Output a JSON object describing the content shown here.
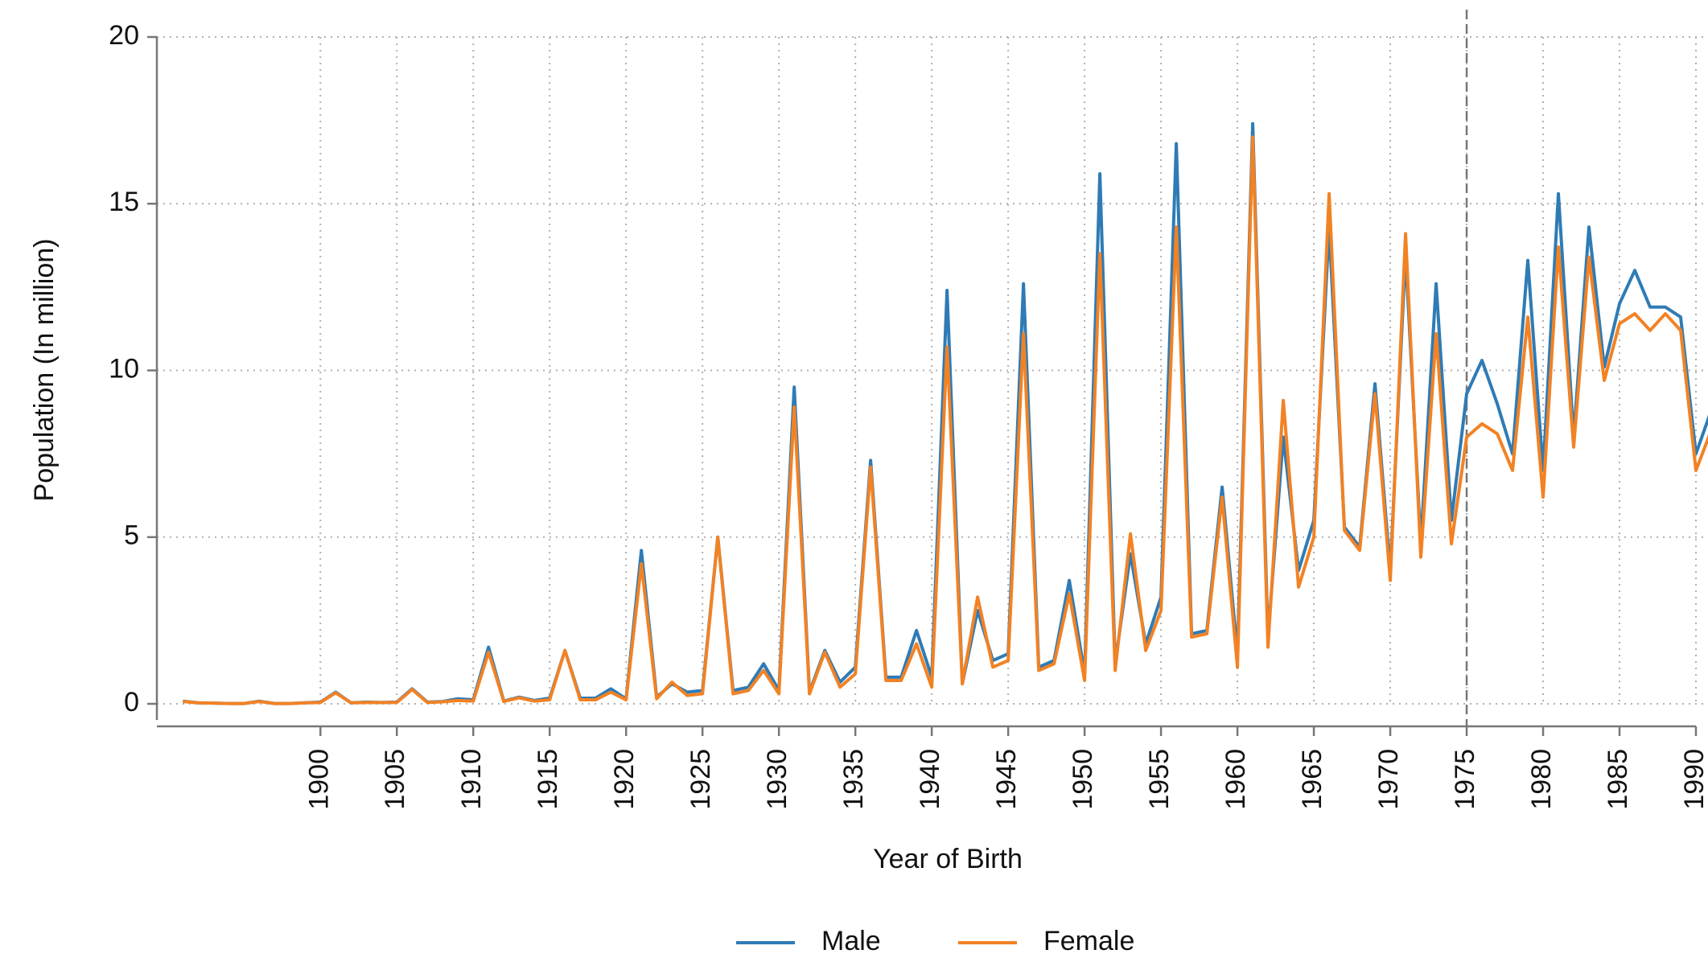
{
  "chart_data": {
    "type": "line",
    "x_label": "Year of Birth",
    "y_label": "Population (In million)",
    "x": [
      1891,
      1892,
      1893,
      1894,
      1895,
      1896,
      1897,
      1898,
      1899,
      1900,
      1901,
      1902,
      1903,
      1904,
      1905,
      1906,
      1907,
      1908,
      1909,
      1910,
      1911,
      1912,
      1913,
      1914,
      1915,
      1916,
      1917,
      1918,
      1919,
      1920,
      1921,
      1922,
      1923,
      1924,
      1925,
      1926,
      1927,
      1928,
      1929,
      1930,
      1931,
      1932,
      1933,
      1934,
      1935,
      1936,
      1937,
      1938,
      1939,
      1940,
      1941,
      1942,
      1943,
      1944,
      1945,
      1946,
      1947,
      1948,
      1949,
      1950,
      1951,
      1952,
      1953,
      1954,
      1955,
      1956,
      1957,
      1958,
      1959,
      1960,
      1961,
      1962,
      1963,
      1964,
      1965,
      1966,
      1967,
      1968,
      1969,
      1970,
      1971,
      1972,
      1973,
      1974,
      1975,
      1976,
      1977,
      1978,
      1979,
      1980,
      1981,
      1982,
      1983,
      1984,
      1985,
      1986,
      1987,
      1988,
      1989,
      1990,
      1991
    ],
    "series": [
      {
        "name": "Male",
        "color": "#2f7bb5",
        "values": [
          0.08,
          0.03,
          0.02,
          0.01,
          0.01,
          0.08,
          0.01,
          0.01,
          0.03,
          0.05,
          0.35,
          0.03,
          0.05,
          0.04,
          0.05,
          0.45,
          0.05,
          0.07,
          0.15,
          0.12,
          1.7,
          0.08,
          0.2,
          0.1,
          0.17,
          1.6,
          0.17,
          0.17,
          0.45,
          0.15,
          4.6,
          0.2,
          0.6,
          0.35,
          0.4,
          5.0,
          0.4,
          0.5,
          1.2,
          0.4,
          9.5,
          0.35,
          1.6,
          0.65,
          1.1,
          7.3,
          0.8,
          0.8,
          2.2,
          0.8,
          12.4,
          0.6,
          2.8,
          1.3,
          1.5,
          12.6,
          1.1,
          1.3,
          3.7,
          0.9,
          15.9,
          1.2,
          4.5,
          1.8,
          3.2,
          16.8,
          2.1,
          2.2,
          6.5,
          1.5,
          17.4,
          2.0,
          8.0,
          4.0,
          5.5,
          14.3,
          5.3,
          4.7,
          9.6,
          4.0,
          13.5,
          4.8,
          12.6,
          5.5,
          9.3,
          10.3,
          9.0,
          7.5,
          13.3,
          7.0,
          15.3,
          8.0,
          14.3,
          10.1,
          12.0,
          13.0,
          11.9,
          11.9,
          11.6,
          7.5,
          8.8
        ]
      },
      {
        "name": "Female",
        "color": "#f28224",
        "values": [
          0.07,
          0.03,
          0.02,
          0.01,
          0.01,
          0.07,
          0.01,
          0.01,
          0.03,
          0.04,
          0.33,
          0.03,
          0.04,
          0.04,
          0.04,
          0.43,
          0.04,
          0.06,
          0.1,
          0.08,
          1.55,
          0.07,
          0.18,
          0.08,
          0.12,
          1.6,
          0.12,
          0.12,
          0.35,
          0.12,
          4.2,
          0.15,
          0.65,
          0.25,
          0.3,
          5.0,
          0.3,
          0.4,
          1.0,
          0.3,
          8.9,
          0.3,
          1.55,
          0.5,
          0.9,
          7.1,
          0.7,
          0.7,
          1.8,
          0.5,
          10.7,
          0.6,
          3.2,
          1.1,
          1.3,
          11.1,
          1.0,
          1.2,
          3.3,
          0.7,
          13.5,
          1.0,
          5.1,
          1.6,
          2.8,
          14.3,
          2.0,
          2.1,
          6.2,
          1.1,
          17.0,
          1.7,
          9.1,
          3.5,
          5.0,
          15.3,
          5.2,
          4.6,
          9.3,
          3.7,
          14.1,
          4.4,
          11.1,
          4.8,
          8.0,
          8.4,
          8.1,
          7.0,
          11.6,
          6.2,
          13.7,
          7.7,
          13.4,
          9.7,
          11.4,
          11.7,
          11.2,
          11.7,
          11.2,
          7.0,
          8.2
        ]
      }
    ],
    "xlim": [
      1889.3,
      1990
    ],
    "ylim": [
      0,
      20
    ],
    "xticks": [
      1900,
      1905,
      1910,
      1915,
      1920,
      1925,
      1930,
      1935,
      1940,
      1945,
      1950,
      1955,
      1960,
      1965,
      1970,
      1975,
      1980,
      1985,
      1990
    ],
    "yticks": [
      0,
      5,
      10,
      15,
      20
    ],
    "grid": true,
    "vline": 1975,
    "legend": "bottom"
  }
}
